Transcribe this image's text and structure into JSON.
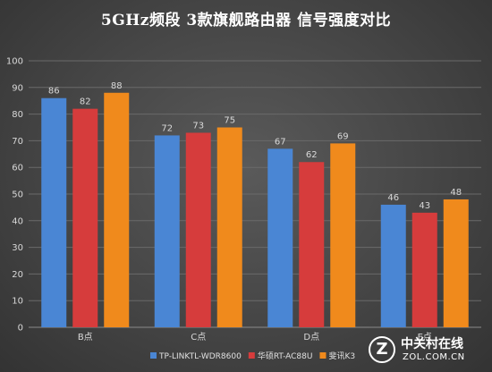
{
  "chart_data": {
    "type": "bar",
    "title": "5GHz频段 3款旗舰路由器 信号强度对比",
    "categories": [
      "B点",
      "C点",
      "D点",
      "E点"
    ],
    "series": [
      {
        "name": "TP-LINKTL-WDR8600",
        "color": "#4a86d4",
        "values": [
          86,
          72,
          67,
          46
        ]
      },
      {
        "name": "华硕RT-AC88U",
        "color": "#d63c3c",
        "values": [
          82,
          73,
          62,
          43
        ]
      },
      {
        "name": "斐讯K3",
        "color": "#f08a1c",
        "values": [
          88,
          75,
          69,
          48
        ]
      }
    ],
    "ylim": [
      0,
      100
    ],
    "yticks": [
      0,
      10,
      20,
      30,
      40,
      50,
      60,
      70,
      80,
      90,
      100
    ],
    "grid": true,
    "legend_position": "bottom",
    "data_labels": true
  },
  "watermark": {
    "logo_letter": "Z",
    "name": "中关村在线",
    "url": "ZOL.COM.CN"
  }
}
